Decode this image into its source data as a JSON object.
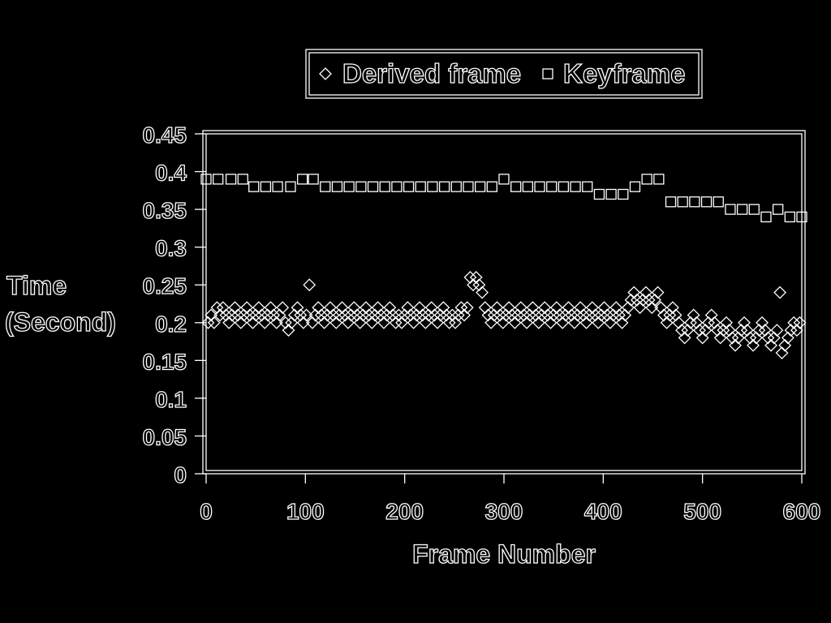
{
  "chart_data": {
    "type": "scatter",
    "title": "",
    "xlabel": "Frame Number",
    "ylabel_lines": [
      "Time",
      "(Second)"
    ],
    "xlim": [
      0,
      600
    ],
    "ylim": [
      0,
      0.45
    ],
    "x_ticks": [
      0,
      100,
      200,
      300,
      400,
      500,
      600
    ],
    "y_ticks": [
      0,
      0.05,
      0.1,
      0.15,
      0.2,
      0.25,
      0.3,
      0.35,
      0.4,
      0.45
    ],
    "x_tick_labels": [
      "0",
      "100",
      "200",
      "300",
      "400",
      "500",
      "600"
    ],
    "y_tick_labels": [
      "0",
      "0.05",
      "0.1",
      "0.15",
      "0.2",
      "0.25",
      "0.3",
      "0.35",
      "0.4",
      "0.45"
    ],
    "grid": false,
    "legend": {
      "placement": "top-center",
      "entries": [
        {
          "label": "Derived frame",
          "marker": "diamond"
        },
        {
          "label": "Keyframe",
          "marker": "square"
        }
      ]
    },
    "series": [
      {
        "name": "Keyframe",
        "marker": "square",
        "points": [
          [
            0,
            0.39
          ],
          [
            12,
            0.39
          ],
          [
            25,
            0.39
          ],
          [
            37,
            0.39
          ],
          [
            48,
            0.38
          ],
          [
            60,
            0.38
          ],
          [
            72,
            0.38
          ],
          [
            85,
            0.38
          ],
          [
            97,
            0.39
          ],
          [
            108,
            0.39
          ],
          [
            120,
            0.38
          ],
          [
            132,
            0.38
          ],
          [
            144,
            0.38
          ],
          [
            156,
            0.38
          ],
          [
            168,
            0.38
          ],
          [
            180,
            0.38
          ],
          [
            192,
            0.38
          ],
          [
            204,
            0.38
          ],
          [
            216,
            0.38
          ],
          [
            228,
            0.38
          ],
          [
            240,
            0.38
          ],
          [
            252,
            0.38
          ],
          [
            264,
            0.38
          ],
          [
            276,
            0.38
          ],
          [
            288,
            0.38
          ],
          [
            300,
            0.39
          ],
          [
            312,
            0.38
          ],
          [
            324,
            0.38
          ],
          [
            336,
            0.38
          ],
          [
            348,
            0.38
          ],
          [
            360,
            0.38
          ],
          [
            372,
            0.38
          ],
          [
            384,
            0.38
          ],
          [
            396,
            0.37
          ],
          [
            408,
            0.37
          ],
          [
            420,
            0.37
          ],
          [
            432,
            0.38
          ],
          [
            444,
            0.39
          ],
          [
            456,
            0.39
          ],
          [
            468,
            0.36
          ],
          [
            480,
            0.36
          ],
          [
            492,
            0.36
          ],
          [
            504,
            0.36
          ],
          [
            516,
            0.36
          ],
          [
            528,
            0.35
          ],
          [
            540,
            0.35
          ],
          [
            552,
            0.35
          ],
          [
            564,
            0.34
          ],
          [
            576,
            0.35
          ],
          [
            588,
            0.34
          ],
          [
            600,
            0.34
          ]
        ]
      },
      {
        "name": "Derived frame",
        "marker": "diamond",
        "points": [
          [
            2,
            0.2
          ],
          [
            5,
            0.21
          ],
          [
            8,
            0.2
          ],
          [
            11,
            0.22
          ],
          [
            14,
            0.21
          ],
          [
            17,
            0.22
          ],
          [
            20,
            0.21
          ],
          [
            23,
            0.2
          ],
          [
            26,
            0.21
          ],
          [
            29,
            0.22
          ],
          [
            32,
            0.21
          ],
          [
            35,
            0.2
          ],
          [
            38,
            0.21
          ],
          [
            41,
            0.22
          ],
          [
            44,
            0.21
          ],
          [
            47,
            0.2
          ],
          [
            50,
            0.21
          ],
          [
            53,
            0.22
          ],
          [
            56,
            0.21
          ],
          [
            59,
            0.2
          ],
          [
            62,
            0.21
          ],
          [
            65,
            0.22
          ],
          [
            68,
            0.21
          ],
          [
            71,
            0.2
          ],
          [
            74,
            0.21
          ],
          [
            77,
            0.22
          ],
          [
            80,
            0.2
          ],
          [
            83,
            0.19
          ],
          [
            86,
            0.2
          ],
          [
            89,
            0.21
          ],
          [
            92,
            0.22
          ],
          [
            95,
            0.21
          ],
          [
            98,
            0.2
          ],
          [
            101,
            0.21
          ],
          [
            104,
            0.25
          ],
          [
            107,
            0.2
          ],
          [
            110,
            0.21
          ],
          [
            113,
            0.22
          ],
          [
            116,
            0.21
          ],
          [
            119,
            0.2
          ],
          [
            122,
            0.21
          ],
          [
            125,
            0.22
          ],
          [
            128,
            0.21
          ],
          [
            131,
            0.2
          ],
          [
            134,
            0.21
          ],
          [
            137,
            0.22
          ],
          [
            140,
            0.21
          ],
          [
            143,
            0.2
          ],
          [
            146,
            0.21
          ],
          [
            149,
            0.22
          ],
          [
            152,
            0.21
          ],
          [
            155,
            0.2
          ],
          [
            158,
            0.21
          ],
          [
            161,
            0.22
          ],
          [
            164,
            0.21
          ],
          [
            167,
            0.2
          ],
          [
            170,
            0.21
          ],
          [
            173,
            0.22
          ],
          [
            176,
            0.21
          ],
          [
            179,
            0.2
          ],
          [
            182,
            0.21
          ],
          [
            185,
            0.22
          ],
          [
            188,
            0.21
          ],
          [
            191,
            0.2
          ],
          [
            194,
            0.21
          ],
          [
            197,
            0.2
          ],
          [
            200,
            0.21
          ],
          [
            203,
            0.22
          ],
          [
            206,
            0.21
          ],
          [
            209,
            0.2
          ],
          [
            212,
            0.21
          ],
          [
            215,
            0.22
          ],
          [
            218,
            0.21
          ],
          [
            221,
            0.2
          ],
          [
            224,
            0.21
          ],
          [
            227,
            0.22
          ],
          [
            230,
            0.21
          ],
          [
            233,
            0.2
          ],
          [
            236,
            0.21
          ],
          [
            239,
            0.22
          ],
          [
            242,
            0.21
          ],
          [
            245,
            0.2
          ],
          [
            248,
            0.21
          ],
          [
            251,
            0.2
          ],
          [
            254,
            0.21
          ],
          [
            257,
            0.22
          ],
          [
            260,
            0.21
          ],
          [
            263,
            0.22
          ],
          [
            266,
            0.26
          ],
          [
            269,
            0.25
          ],
          [
            272,
            0.26
          ],
          [
            275,
            0.25
          ],
          [
            278,
            0.24
          ],
          [
            281,
            0.22
          ],
          [
            284,
            0.21
          ],
          [
            287,
            0.2
          ],
          [
            290,
            0.21
          ],
          [
            293,
            0.22
          ],
          [
            296,
            0.21
          ],
          [
            299,
            0.2
          ],
          [
            302,
            0.21
          ],
          [
            305,
            0.22
          ],
          [
            308,
            0.21
          ],
          [
            311,
            0.2
          ],
          [
            314,
            0.21
          ],
          [
            317,
            0.22
          ],
          [
            320,
            0.21
          ],
          [
            323,
            0.2
          ],
          [
            326,
            0.21
          ],
          [
            329,
            0.22
          ],
          [
            332,
            0.21
          ],
          [
            335,
            0.2
          ],
          [
            338,
            0.21
          ],
          [
            341,
            0.22
          ],
          [
            344,
            0.21
          ],
          [
            347,
            0.2
          ],
          [
            350,
            0.21
          ],
          [
            353,
            0.22
          ],
          [
            356,
            0.21
          ],
          [
            359,
            0.2
          ],
          [
            362,
            0.21
          ],
          [
            365,
            0.22
          ],
          [
            368,
            0.21
          ],
          [
            371,
            0.2
          ],
          [
            374,
            0.21
          ],
          [
            377,
            0.22
          ],
          [
            380,
            0.21
          ],
          [
            383,
            0.2
          ],
          [
            386,
            0.21
          ],
          [
            389,
            0.22
          ],
          [
            392,
            0.21
          ],
          [
            395,
            0.2
          ],
          [
            398,
            0.21
          ],
          [
            401,
            0.22
          ],
          [
            404,
            0.21
          ],
          [
            407,
            0.2
          ],
          [
            410,
            0.21
          ],
          [
            413,
            0.22
          ],
          [
            416,
            0.21
          ],
          [
            419,
            0.2
          ],
          [
            422,
            0.21
          ],
          [
            425,
            0.22
          ],
          [
            428,
            0.23
          ],
          [
            431,
            0.24
          ],
          [
            434,
            0.23
          ],
          [
            437,
            0.22
          ],
          [
            440,
            0.23
          ],
          [
            443,
            0.24
          ],
          [
            446,
            0.23
          ],
          [
            449,
            0.22
          ],
          [
            452,
            0.23
          ],
          [
            455,
            0.24
          ],
          [
            458,
            0.22
          ],
          [
            461,
            0.21
          ],
          [
            464,
            0.2
          ],
          [
            467,
            0.21
          ],
          [
            470,
            0.22
          ],
          [
            473,
            0.21
          ],
          [
            476,
            0.2
          ],
          [
            479,
            0.19
          ],
          [
            482,
            0.18
          ],
          [
            485,
            0.19
          ],
          [
            488,
            0.2
          ],
          [
            491,
            0.21
          ],
          [
            494,
            0.2
          ],
          [
            497,
            0.19
          ],
          [
            500,
            0.18
          ],
          [
            503,
            0.19
          ],
          [
            506,
            0.2
          ],
          [
            509,
            0.21
          ],
          [
            512,
            0.2
          ],
          [
            515,
            0.19
          ],
          [
            518,
            0.18
          ],
          [
            521,
            0.19
          ],
          [
            524,
            0.2
          ],
          [
            527,
            0.19
          ],
          [
            530,
            0.18
          ],
          [
            533,
            0.17
          ],
          [
            536,
            0.18
          ],
          [
            539,
            0.19
          ],
          [
            542,
            0.2
          ],
          [
            545,
            0.19
          ],
          [
            548,
            0.18
          ],
          [
            551,
            0.17
          ],
          [
            554,
            0.18
          ],
          [
            557,
            0.19
          ],
          [
            560,
            0.2
          ],
          [
            563,
            0.19
          ],
          [
            566,
            0.18
          ],
          [
            569,
            0.17
          ],
          [
            572,
            0.18
          ],
          [
            575,
            0.19
          ],
          [
            578,
            0.24
          ],
          [
            580,
            0.16
          ],
          [
            583,
            0.17
          ],
          [
            586,
            0.18
          ],
          [
            589,
            0.19
          ],
          [
            592,
            0.2
          ],
          [
            595,
            0.19
          ],
          [
            598,
            0.2
          ]
        ]
      }
    ]
  }
}
